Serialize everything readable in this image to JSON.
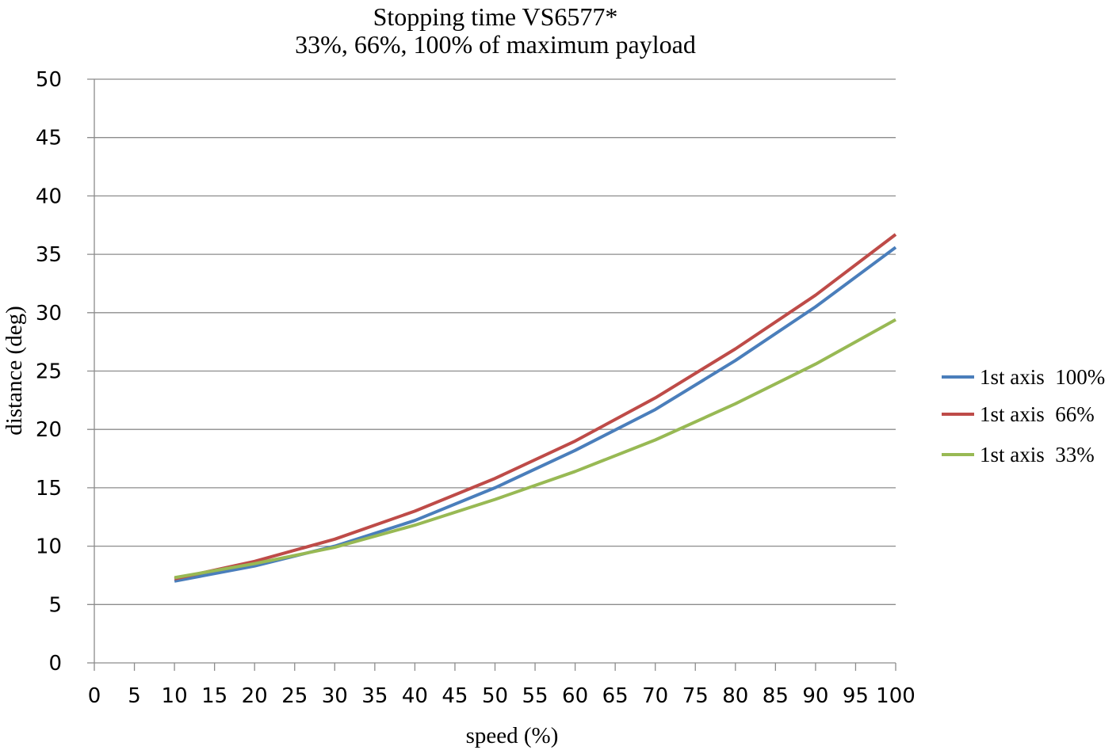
{
  "chart_data": {
    "type": "line",
    "title": "Stopping time VS6577*",
    "subtitle": "33%, 66%, 100% of maximum payload",
    "xlabel": "speed (%)",
    "ylabel": "distance (deg)",
    "xlim": [
      0,
      100
    ],
    "ylim": [
      0,
      50
    ],
    "x_ticks": [
      0,
      5,
      10,
      15,
      20,
      25,
      30,
      35,
      40,
      45,
      50,
      55,
      60,
      65,
      70,
      75,
      80,
      85,
      90,
      95,
      100
    ],
    "y_ticks": [
      0,
      5,
      10,
      15,
      20,
      25,
      30,
      35,
      40,
      45,
      50
    ],
    "grid": "horizontal",
    "legend_position": "right",
    "x": [
      10,
      20,
      30,
      40,
      50,
      60,
      70,
      80,
      90,
      100
    ],
    "series": [
      {
        "name": "1st axis  100%",
        "color": "#4a7ebb",
        "values": [
          7.0,
          8.3,
          10.0,
          12.2,
          15.0,
          18.2,
          21.7,
          25.9,
          30.5,
          35.6
        ]
      },
      {
        "name": "1st axis  66%",
        "color": "#be4b48",
        "values": [
          7.2,
          8.7,
          10.6,
          13.0,
          15.8,
          19.0,
          22.7,
          26.9,
          31.5,
          36.7
        ]
      },
      {
        "name": "1st axis  33%",
        "color": "#98b954",
        "values": [
          7.3,
          8.5,
          9.9,
          11.8,
          14.0,
          16.4,
          19.1,
          22.2,
          25.6,
          29.4
        ]
      }
    ]
  }
}
